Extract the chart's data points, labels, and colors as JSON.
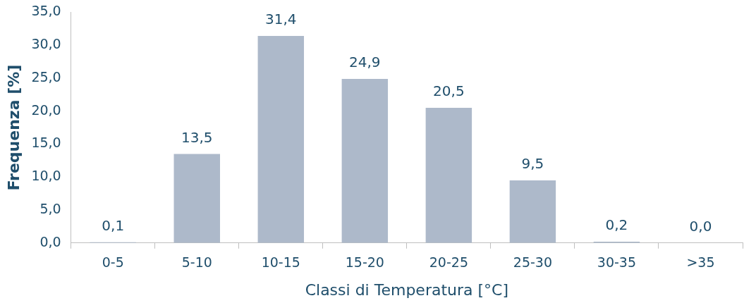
{
  "chart_data": {
    "type": "bar",
    "xlabel": "Classi di Temperatura [°C]",
    "ylabel": "Frequenza [%]",
    "categories": [
      "0-5",
      "5-10",
      "10-15",
      "15-20",
      "20-25",
      "25-30",
      "30-35",
      ">35"
    ],
    "values": [
      0.1,
      13.5,
      31.4,
      24.9,
      20.5,
      9.5,
      0.2,
      0.0
    ],
    "value_labels": [
      "0,1",
      "13,5",
      "31,4",
      "24,9",
      "20,5",
      "9,5",
      "0,2",
      "0,0"
    ],
    "color": "#adb9ca",
    "ylim": [
      0,
      35
    ],
    "yticks": [
      {
        "value": 0,
        "label": "0,0"
      },
      {
        "value": 5,
        "label": "5,0"
      },
      {
        "value": 10,
        "label": "10,0"
      },
      {
        "value": 15,
        "label": "15,0"
      },
      {
        "value": 20,
        "label": "20,0"
      },
      {
        "value": 25,
        "label": "25,0"
      },
      {
        "value": 30,
        "label": "30,0"
      },
      {
        "value": 35,
        "label": "35,0"
      }
    ],
    "grid": false,
    "legend": false
  }
}
